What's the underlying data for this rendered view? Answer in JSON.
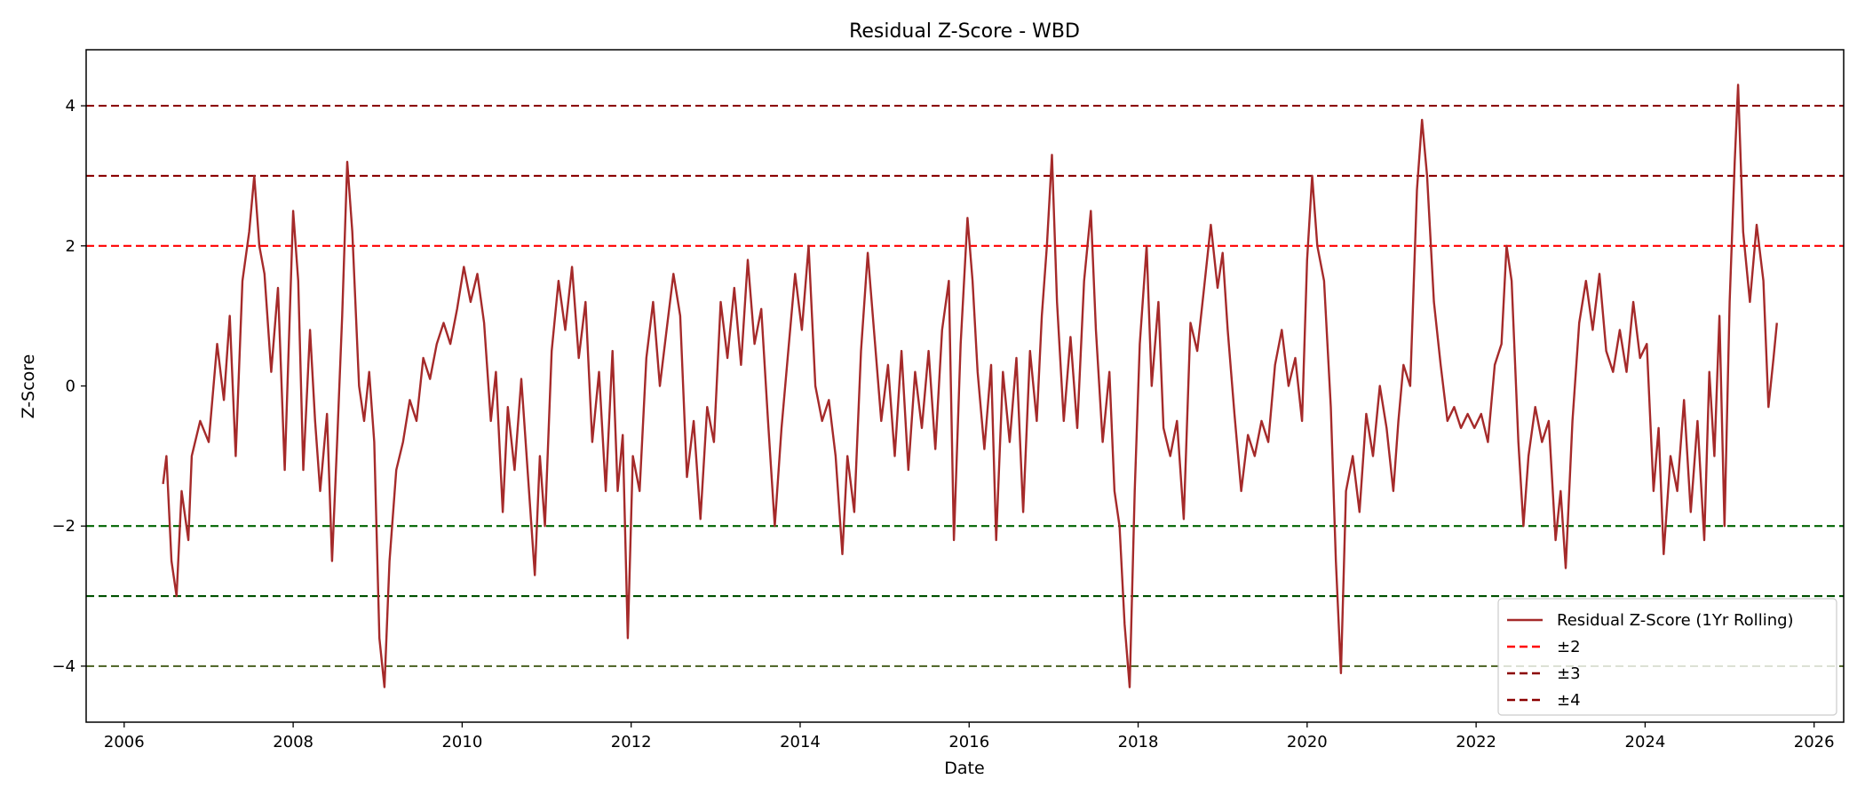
{
  "chart_data": {
    "type": "line",
    "title": "Residual Z-Score - WBD",
    "xlabel": "Date",
    "ylabel": "Z-Score",
    "xlim": [
      2005.55,
      2026.35
    ],
    "ylim": [
      -4.8,
      4.8
    ],
    "x_ticks": [
      2006,
      2008,
      2010,
      2012,
      2014,
      2016,
      2018,
      2020,
      2022,
      2024,
      2026
    ],
    "x_tick_labels": [
      "2006",
      "2008",
      "2010",
      "2012",
      "2014",
      "2016",
      "2018",
      "2020",
      "2022",
      "2024",
      "2026"
    ],
    "y_ticks": [
      -4,
      -2,
      0,
      2,
      4
    ],
    "y_tick_labels": [
      "−4",
      "−2",
      "0",
      "2",
      "4"
    ],
    "grid": false,
    "legend_position": "lower right",
    "series": [
      {
        "name": "Residual Z-Score (1Yr Rolling)",
        "color": "#a52a2a",
        "points": [
          [
            2006.46,
            -1.4
          ],
          [
            2006.5,
            -1.0
          ],
          [
            2006.56,
            -2.5
          ],
          [
            2006.62,
            -3.0
          ],
          [
            2006.68,
            -1.5
          ],
          [
            2006.76,
            -2.2
          ],
          [
            2006.8,
            -1.0
          ],
          [
            2006.9,
            -0.5
          ],
          [
            2007.0,
            -0.8
          ],
          [
            2007.1,
            0.6
          ],
          [
            2007.18,
            -0.2
          ],
          [
            2007.25,
            1.0
          ],
          [
            2007.32,
            -1.0
          ],
          [
            2007.4,
            1.5
          ],
          [
            2007.48,
            2.2
          ],
          [
            2007.54,
            3.0
          ],
          [
            2007.6,
            2.0
          ],
          [
            2007.66,
            1.6
          ],
          [
            2007.74,
            0.2
          ],
          [
            2007.82,
            1.4
          ],
          [
            2007.9,
            -1.2
          ],
          [
            2008.0,
            2.5
          ],
          [
            2008.06,
            1.5
          ],
          [
            2008.12,
            -1.2
          ],
          [
            2008.2,
            0.8
          ],
          [
            2008.26,
            -0.5
          ],
          [
            2008.32,
            -1.5
          ],
          [
            2008.4,
            -0.4
          ],
          [
            2008.46,
            -2.5
          ],
          [
            2008.52,
            -0.8
          ],
          [
            2008.58,
            1.0
          ],
          [
            2008.64,
            3.2
          ],
          [
            2008.7,
            2.2
          ],
          [
            2008.78,
            0.0
          ],
          [
            2008.84,
            -0.5
          ],
          [
            2008.9,
            0.2
          ],
          [
            2008.96,
            -0.8
          ],
          [
            2009.02,
            -3.6
          ],
          [
            2009.08,
            -4.3
          ],
          [
            2009.14,
            -2.5
          ],
          [
            2009.22,
            -1.2
          ],
          [
            2009.3,
            -0.8
          ],
          [
            2009.38,
            -0.2
          ],
          [
            2009.46,
            -0.5
          ],
          [
            2009.54,
            0.4
          ],
          [
            2009.62,
            0.1
          ],
          [
            2009.7,
            0.6
          ],
          [
            2009.78,
            0.9
          ],
          [
            2009.86,
            0.6
          ],
          [
            2009.94,
            1.1
          ],
          [
            2010.02,
            1.7
          ],
          [
            2010.1,
            1.2
          ],
          [
            2010.18,
            1.6
          ],
          [
            2010.26,
            0.9
          ],
          [
            2010.34,
            -0.5
          ],
          [
            2010.4,
            0.2
          ],
          [
            2010.48,
            -1.8
          ],
          [
            2010.54,
            -0.3
          ],
          [
            2010.62,
            -1.2
          ],
          [
            2010.7,
            0.1
          ],
          [
            2010.78,
            -1.3
          ],
          [
            2010.86,
            -2.7
          ],
          [
            2010.92,
            -1.0
          ],
          [
            2010.98,
            -2.0
          ],
          [
            2011.06,
            0.5
          ],
          [
            2011.14,
            1.5
          ],
          [
            2011.22,
            0.8
          ],
          [
            2011.3,
            1.7
          ],
          [
            2011.38,
            0.4
          ],
          [
            2011.46,
            1.2
          ],
          [
            2011.54,
            -0.8
          ],
          [
            2011.62,
            0.2
          ],
          [
            2011.7,
            -1.5
          ],
          [
            2011.78,
            0.5
          ],
          [
            2011.84,
            -1.5
          ],
          [
            2011.9,
            -0.7
          ],
          [
            2011.96,
            -3.6
          ],
          [
            2012.02,
            -1.0
          ],
          [
            2012.1,
            -1.5
          ],
          [
            2012.18,
            0.4
          ],
          [
            2012.26,
            1.2
          ],
          [
            2012.34,
            0.0
          ],
          [
            2012.42,
            0.8
          ],
          [
            2012.5,
            1.6
          ],
          [
            2012.58,
            1.0
          ],
          [
            2012.66,
            -1.3
          ],
          [
            2012.74,
            -0.5
          ],
          [
            2012.82,
            -1.9
          ],
          [
            2012.9,
            -0.3
          ],
          [
            2012.98,
            -0.8
          ],
          [
            2013.06,
            1.2
          ],
          [
            2013.14,
            0.4
          ],
          [
            2013.22,
            1.4
          ],
          [
            2013.3,
            0.3
          ],
          [
            2013.38,
            1.8
          ],
          [
            2013.46,
            0.6
          ],
          [
            2013.54,
            1.1
          ],
          [
            2013.62,
            -0.5
          ],
          [
            2013.7,
            -2.0
          ],
          [
            2013.78,
            -0.6
          ],
          [
            2013.86,
            0.5
          ],
          [
            2013.94,
            1.6
          ],
          [
            2014.02,
            0.8
          ],
          [
            2014.1,
            2.0
          ],
          [
            2014.18,
            0.0
          ],
          [
            2014.26,
            -0.5
          ],
          [
            2014.34,
            -0.2
          ],
          [
            2014.42,
            -1.0
          ],
          [
            2014.5,
            -2.4
          ],
          [
            2014.56,
            -1.0
          ],
          [
            2014.64,
            -1.8
          ],
          [
            2014.72,
            0.5
          ],
          [
            2014.8,
            1.9
          ],
          [
            2014.88,
            0.7
          ],
          [
            2014.96,
            -0.5
          ],
          [
            2015.04,
            0.3
          ],
          [
            2015.12,
            -1.0
          ],
          [
            2015.2,
            0.5
          ],
          [
            2015.28,
            -1.2
          ],
          [
            2015.36,
            0.2
          ],
          [
            2015.44,
            -0.6
          ],
          [
            2015.52,
            0.5
          ],
          [
            2015.6,
            -0.9
          ],
          [
            2015.68,
            0.8
          ],
          [
            2015.76,
            1.5
          ],
          [
            2015.82,
            -2.2
          ],
          [
            2015.9,
            0.6
          ],
          [
            2015.98,
            2.4
          ],
          [
            2016.04,
            1.5
          ],
          [
            2016.1,
            0.2
          ],
          [
            2016.18,
            -0.9
          ],
          [
            2016.26,
            0.3
          ],
          [
            2016.32,
            -2.2
          ],
          [
            2016.4,
            0.2
          ],
          [
            2016.48,
            -0.8
          ],
          [
            2016.56,
            0.4
          ],
          [
            2016.64,
            -1.8
          ],
          [
            2016.72,
            0.5
          ],
          [
            2016.8,
            -0.5
          ],
          [
            2016.86,
            1.0
          ],
          [
            2016.92,
            2.0
          ],
          [
            2016.98,
            3.3
          ],
          [
            2017.04,
            1.2
          ],
          [
            2017.12,
            -0.5
          ],
          [
            2017.2,
            0.7
          ],
          [
            2017.28,
            -0.6
          ],
          [
            2017.36,
            1.5
          ],
          [
            2017.44,
            2.5
          ],
          [
            2017.5,
            0.8
          ],
          [
            2017.58,
            -0.8
          ],
          [
            2017.66,
            0.2
          ],
          [
            2017.72,
            -1.5
          ],
          [
            2017.78,
            -2.0
          ],
          [
            2017.84,
            -3.4
          ],
          [
            2017.9,
            -4.3
          ],
          [
            2017.96,
            -1.5
          ],
          [
            2018.02,
            0.6
          ],
          [
            2018.1,
            2.0
          ],
          [
            2018.16,
            0.0
          ],
          [
            2018.24,
            1.2
          ],
          [
            2018.3,
            -0.6
          ],
          [
            2018.38,
            -1.0
          ],
          [
            2018.46,
            -0.5
          ],
          [
            2018.54,
            -1.9
          ],
          [
            2018.62,
            0.9
          ],
          [
            2018.7,
            0.5
          ],
          [
            2018.78,
            1.4
          ],
          [
            2018.86,
            2.3
          ],
          [
            2018.94,
            1.4
          ],
          [
            2019.0,
            1.9
          ],
          [
            2019.06,
            0.8
          ],
          [
            2019.14,
            -0.4
          ],
          [
            2019.22,
            -1.5
          ],
          [
            2019.3,
            -0.7
          ],
          [
            2019.38,
            -1.0
          ],
          [
            2019.46,
            -0.5
          ],
          [
            2019.54,
            -0.8
          ],
          [
            2019.62,
            0.3
          ],
          [
            2019.7,
            0.8
          ],
          [
            2019.78,
            0.0
          ],
          [
            2019.86,
            0.4
          ],
          [
            2019.94,
            -0.5
          ],
          [
            2020.0,
            1.8
          ],
          [
            2020.06,
            3.0
          ],
          [
            2020.12,
            2.0
          ],
          [
            2020.2,
            1.5
          ],
          [
            2020.28,
            -0.3
          ],
          [
            2020.34,
            -2.5
          ],
          [
            2020.4,
            -4.1
          ],
          [
            2020.46,
            -1.5
          ],
          [
            2020.54,
            -1.0
          ],
          [
            2020.62,
            -1.8
          ],
          [
            2020.7,
            -0.4
          ],
          [
            2020.78,
            -1.0
          ],
          [
            2020.86,
            0.0
          ],
          [
            2020.94,
            -0.6
          ],
          [
            2021.02,
            -1.5
          ],
          [
            2021.08,
            -0.5
          ],
          [
            2021.14,
            0.3
          ],
          [
            2021.22,
            0.0
          ],
          [
            2021.3,
            2.8
          ],
          [
            2021.36,
            3.8
          ],
          [
            2021.42,
            3.0
          ],
          [
            2021.5,
            1.2
          ],
          [
            2021.58,
            0.3
          ],
          [
            2021.66,
            -0.5
          ],
          [
            2021.74,
            -0.3
          ],
          [
            2021.82,
            -0.6
          ],
          [
            2021.9,
            -0.4
          ],
          [
            2021.98,
            -0.6
          ],
          [
            2022.06,
            -0.4
          ],
          [
            2022.14,
            -0.8
          ],
          [
            2022.22,
            0.3
          ],
          [
            2022.3,
            0.6
          ],
          [
            2022.36,
            2.0
          ],
          [
            2022.42,
            1.5
          ],
          [
            2022.5,
            -0.8
          ],
          [
            2022.56,
            -2.0
          ],
          [
            2022.62,
            -1.0
          ],
          [
            2022.7,
            -0.3
          ],
          [
            2022.78,
            -0.8
          ],
          [
            2022.86,
            -0.5
          ],
          [
            2022.94,
            -2.2
          ],
          [
            2023.0,
            -1.5
          ],
          [
            2023.06,
            -2.6
          ],
          [
            2023.14,
            -0.5
          ],
          [
            2023.22,
            0.9
          ],
          [
            2023.3,
            1.5
          ],
          [
            2023.38,
            0.8
          ],
          [
            2023.46,
            1.6
          ],
          [
            2023.54,
            0.5
          ],
          [
            2023.62,
            0.2
          ],
          [
            2023.7,
            0.8
          ],
          [
            2023.78,
            0.2
          ],
          [
            2023.86,
            1.2
          ],
          [
            2023.94,
            0.4
          ],
          [
            2024.02,
            0.6
          ],
          [
            2024.1,
            -1.5
          ],
          [
            2024.16,
            -0.6
          ],
          [
            2024.22,
            -2.4
          ],
          [
            2024.3,
            -1.0
          ],
          [
            2024.38,
            -1.5
          ],
          [
            2024.46,
            -0.2
          ],
          [
            2024.54,
            -1.8
          ],
          [
            2024.62,
            -0.5
          ],
          [
            2024.7,
            -2.2
          ],
          [
            2024.76,
            0.2
          ],
          [
            2024.82,
            -1.0
          ],
          [
            2024.88,
            1.0
          ],
          [
            2024.94,
            -2.0
          ],
          [
            2025.0,
            1.2
          ],
          [
            2025.06,
            3.2
          ],
          [
            2025.1,
            4.3
          ],
          [
            2025.16,
            2.2
          ],
          [
            2025.24,
            1.2
          ],
          [
            2025.32,
            2.3
          ],
          [
            2025.4,
            1.5
          ],
          [
            2025.46,
            -0.3
          ],
          [
            2025.52,
            0.4
          ],
          [
            2025.56,
            0.9
          ]
        ]
      }
    ],
    "reference_lines": [
      {
        "name": "±2",
        "values": [
          2,
          -2
        ],
        "colors": [
          "#ff0000",
          "#006400"
        ]
      },
      {
        "name": "±3",
        "values": [
          3,
          -3
        ],
        "colors": [
          "#8b0000",
          "#005000"
        ]
      },
      {
        "name": "±4",
        "values": [
          4,
          -4
        ],
        "colors": [
          "#8b0000",
          "#556b2f"
        ]
      }
    ],
    "legend": [
      {
        "label": "Residual Z-Score (1Yr Rolling)",
        "color": "#a52a2a",
        "style": "solid"
      },
      {
        "label": "±2",
        "color": "#ff0000",
        "style": "dashed"
      },
      {
        "label": "±3",
        "color": "#8b0000",
        "style": "dashed"
      },
      {
        "label": "±4",
        "color": "#8b0000",
        "style": "dashed"
      }
    ]
  }
}
